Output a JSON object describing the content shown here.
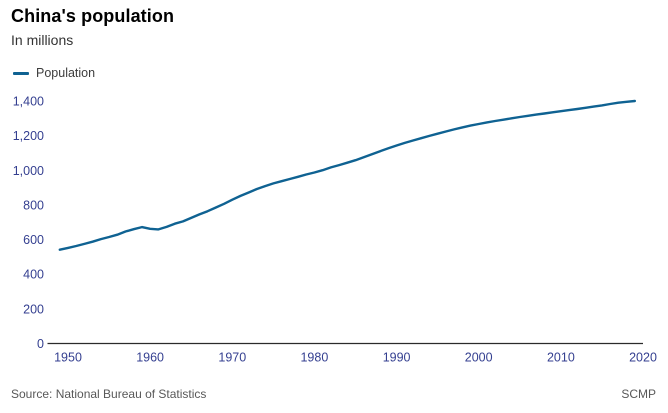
{
  "header": {
    "title": "China's population",
    "subtitle": "In millions"
  },
  "legend": {
    "label": "Population"
  },
  "footer": {
    "source": "Source: National Bureau of Statistics",
    "brand": "SCMP"
  },
  "colors": {
    "line": "#0f6292",
    "tick_label": "#343f90",
    "axis": "#2b2b2b",
    "muted_text": "#585858"
  },
  "chart_data": {
    "type": "line",
    "title": "China's population",
    "subtitle": "In millions",
    "xlabel": "",
    "ylabel": "In millions",
    "grid": false,
    "legend_position": "top-left",
    "xlim": [
      1947.5,
      2020
    ],
    "ylim": [
      0,
      1400
    ],
    "x_ticks": [
      1950,
      1960,
      1970,
      1980,
      1990,
      2000,
      2010,
      2020
    ],
    "y_ticks": [
      0,
      200,
      400,
      600,
      800,
      1000,
      1200,
      1400
    ],
    "x": [
      1949,
      1950,
      1951,
      1952,
      1953,
      1954,
      1955,
      1956,
      1957,
      1958,
      1959,
      1960,
      1961,
      1962,
      1963,
      1964,
      1965,
      1966,
      1967,
      1968,
      1969,
      1970,
      1971,
      1972,
      1973,
      1974,
      1975,
      1976,
      1977,
      1978,
      1979,
      1980,
      1981,
      1982,
      1983,
      1984,
      1985,
      1986,
      1987,
      1988,
      1989,
      1990,
      1991,
      1992,
      1993,
      1994,
      1995,
      1996,
      1997,
      1998,
      1999,
      2000,
      2001,
      2002,
      2003,
      2004,
      2005,
      2006,
      2007,
      2008,
      2009,
      2010,
      2011,
      2012,
      2013,
      2014,
      2015,
      2016,
      2017,
      2018,
      2019
    ],
    "series": [
      {
        "name": "Population",
        "values": [
          541.7,
          552.0,
          563.0,
          574.8,
          588.0,
          602.7,
          614.7,
          628.3,
          646.5,
          659.9,
          672.1,
          662.1,
          658.6,
          673.0,
          691.7,
          705.0,
          725.4,
          745.4,
          763.7,
          785.3,
          806.7,
          829.9,
          852.3,
          871.8,
          892.1,
          908.6,
          924.2,
          937.2,
          949.7,
          962.6,
          975.4,
          987.1,
          1000.7,
          1016.5,
          1030.1,
          1043.6,
          1058.5,
          1075.1,
          1093.0,
          1110.3,
          1127.0,
          1143.3,
          1158.2,
          1171.7,
          1185.2,
          1198.5,
          1211.2,
          1223.9,
          1236.3,
          1247.6,
          1257.9,
          1267.4,
          1276.3,
          1284.5,
          1292.3,
          1299.9,
          1307.6,
          1314.5,
          1321.3,
          1328.0,
          1334.5,
          1340.9,
          1347.4,
          1354.0,
          1360.7,
          1367.8,
          1374.6,
          1382.7,
          1390.1,
          1395.4,
          1400.0
        ]
      }
    ]
  }
}
